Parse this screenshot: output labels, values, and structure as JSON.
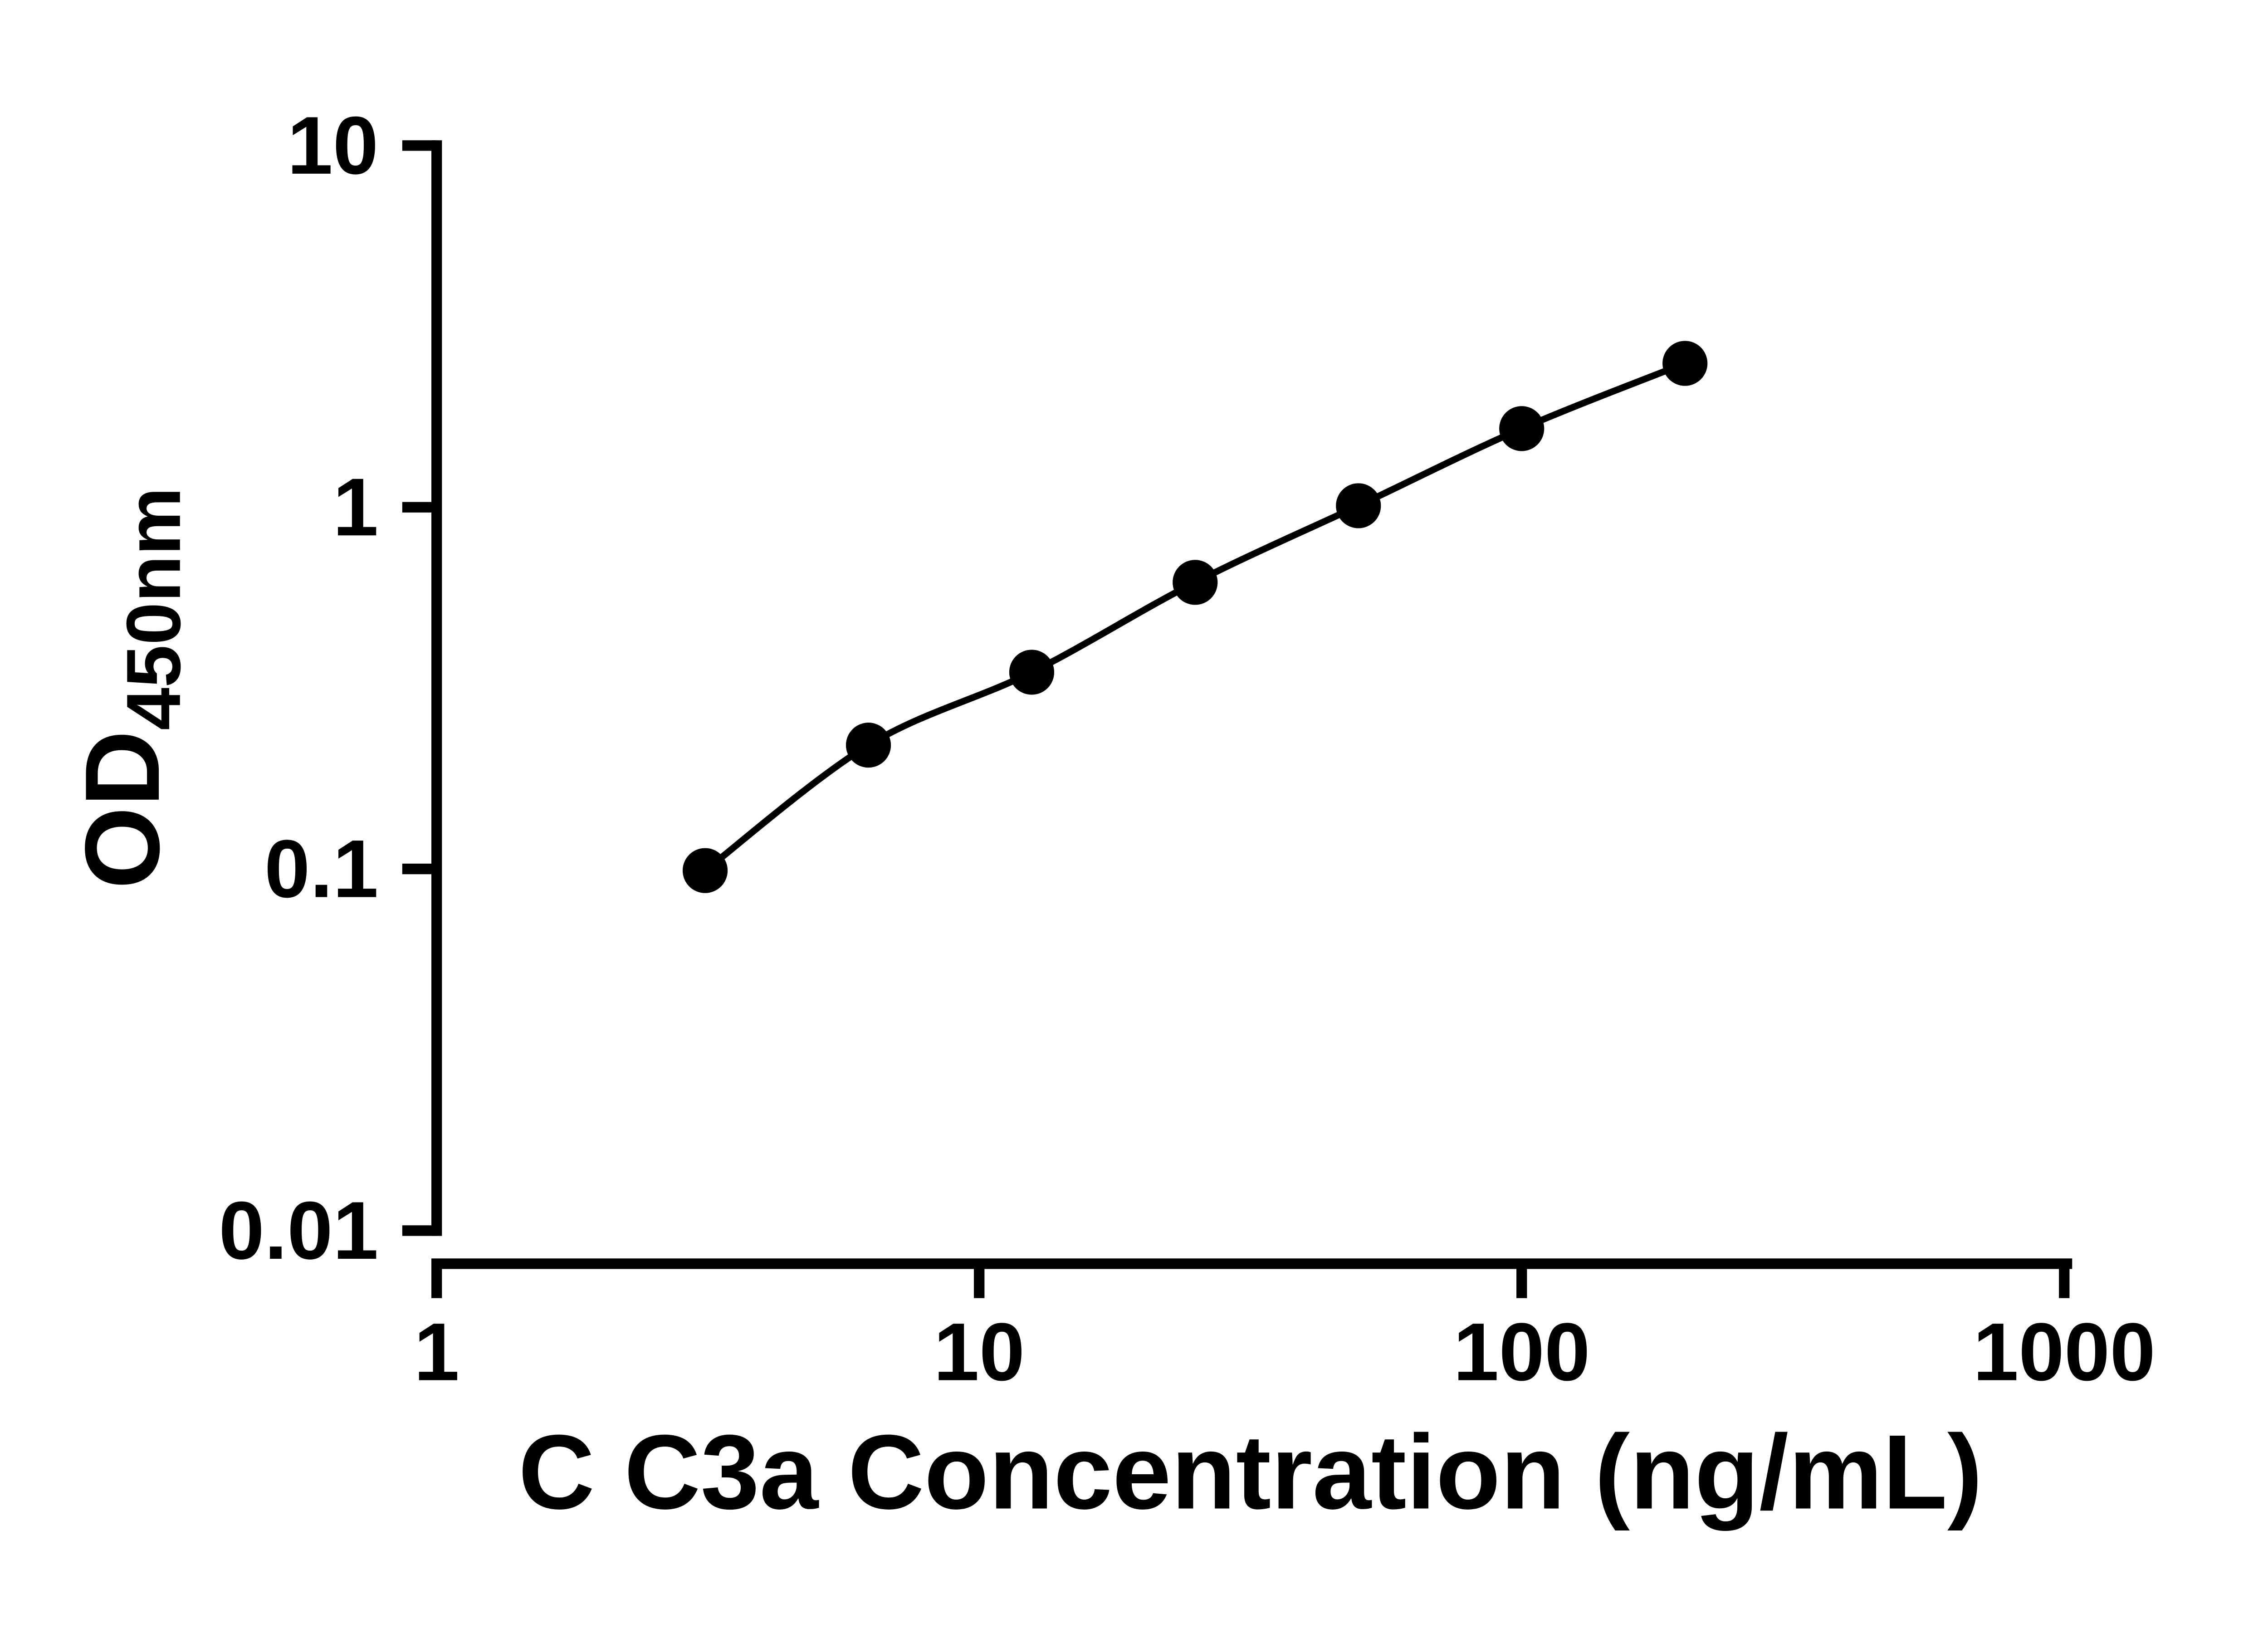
{
  "figure": {
    "background": "#ffffff",
    "ink_color": "#000000"
  },
  "chart_data": {
    "type": "scatter",
    "subtype": "standard-curve-with-fit-line",
    "title": "",
    "xlabel": "C C3a Concentration (ng/mL)",
    "ylabel_main": "OD",
    "ylabel_sub": "450nm",
    "x_scale": "log10",
    "y_scale": "log10",
    "xlim": [
      1,
      1000
    ],
    "ylim": [
      0.01,
      10
    ],
    "x_ticks": [
      1,
      10,
      100,
      1000
    ],
    "x_tick_labels": [
      "1",
      "10",
      "100",
      "1000"
    ],
    "y_ticks": [
      0.01,
      0.1,
      1,
      10
    ],
    "y_tick_labels": [
      "0.01",
      "0.1",
      "1",
      "10"
    ],
    "points": [
      {
        "x": 3.125,
        "y": 0.099
      },
      {
        "x": 6.25,
        "y": 0.22
      },
      {
        "x": 12.5,
        "y": 0.35
      },
      {
        "x": 25,
        "y": 0.62
      },
      {
        "x": 50,
        "y": 1.01
      },
      {
        "x": 100,
        "y": 1.65
      },
      {
        "x": 200,
        "y": 2.5
      }
    ],
    "marker": {
      "shape": "circle",
      "color": "#000000"
    },
    "line": {
      "color": "#000000",
      "style": "solid"
    },
    "grid": false,
    "legend": null
  }
}
